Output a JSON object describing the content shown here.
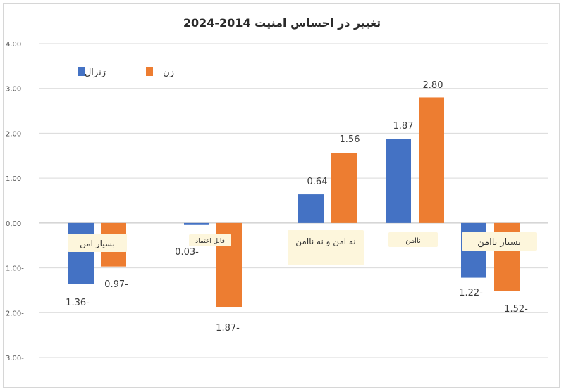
{
  "chart_data": {
    "type": "bar",
    "title": "تغییر در احساس امنیت 2014-2024",
    "categories": [
      "بسیار امن",
      "قابل اعتماد",
      "نه امن و نه ناامن",
      "ناامن",
      "بسیار ناامن"
    ],
    "series": [
      {
        "name": "ژنرال",
        "color": "#4472c4",
        "values": [
          -1.36,
          -0.03,
          0.64,
          1.87,
          -1.22
        ],
        "labels": [
          "1.36-",
          "0.03-",
          "0.64",
          "1.87",
          "1.22-"
        ]
      },
      {
        "name": "زن",
        "color": "#ed7d31",
        "values": [
          -0.97,
          -1.87,
          1.56,
          2.8,
          -1.52
        ],
        "labels": [
          "0.97-",
          "1.87-",
          "1.56",
          "2.80",
          "1.52-"
        ]
      }
    ],
    "ylim": [
      -3,
      4
    ],
    "y_ticks": [
      4,
      3,
      2,
      1,
      0,
      -1,
      -2,
      -3
    ],
    "y_tick_labels": [
      "4.00",
      "3.00",
      "2.00",
      "1.00",
      "0,00",
      "1.00-",
      "2.00-",
      "3.00-"
    ],
    "grid": true,
    "legend_position": "top-left"
  }
}
